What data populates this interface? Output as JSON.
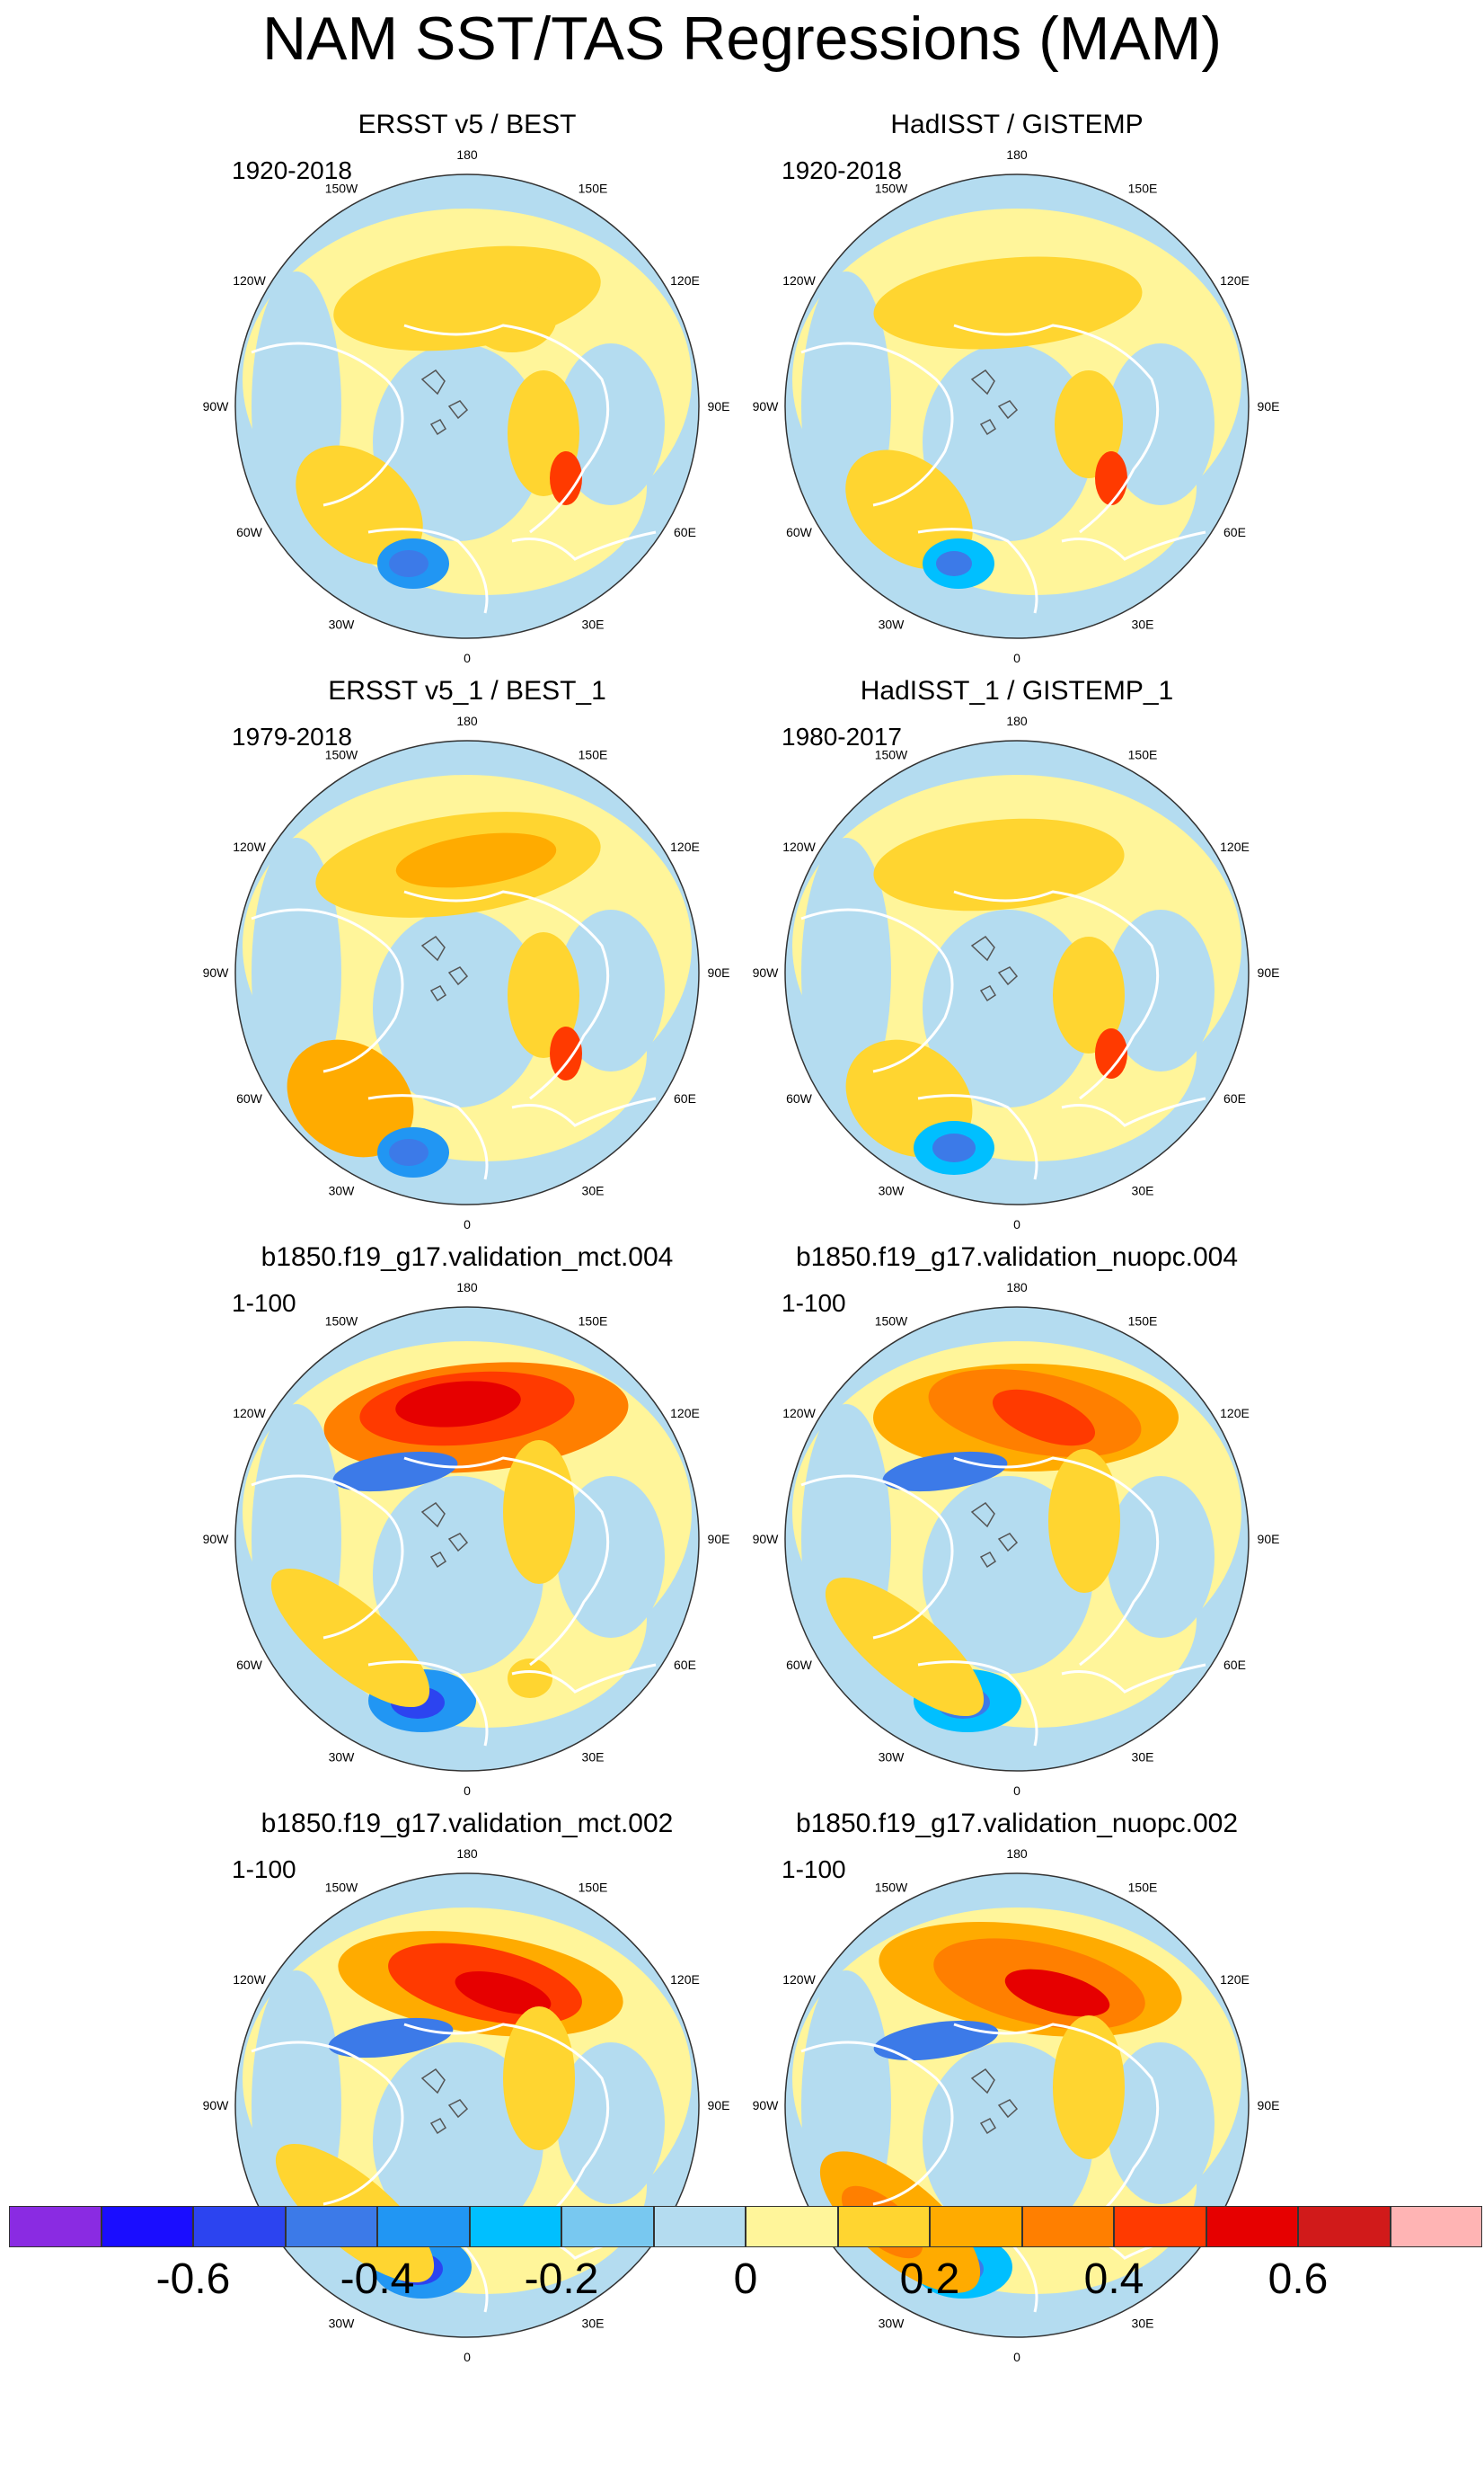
{
  "title": "NAM SST/TAS Regressions (MAM)",
  "lon_labels": [
    "180",
    "150E",
    "120E",
    "90E",
    "60E",
    "30E",
    "0",
    "30W",
    "60W",
    "90W",
    "120W",
    "150W"
  ],
  "panels": [
    {
      "title": "ERSST v5 / BEST",
      "period": "1920-2018"
    },
    {
      "title": "HadISST / GISTEMP",
      "period": "1920-2018"
    },
    {
      "title": "ERSST v5_1 / BEST_1",
      "period": "1979-2018"
    },
    {
      "title": "HadISST_1 / GISTEMP_1",
      "period": "1980-2017"
    },
    {
      "title": "b1850.f19_g17.validation_mct.004",
      "period": "1-100"
    },
    {
      "title": "b1850.f19_g17.validation_nuopc.004",
      "period": "1-100"
    },
    {
      "title": "b1850.f19_g17.validation_mct.002",
      "period": "1-100"
    },
    {
      "title": "b1850.f19_g17.validation_nuopc.002",
      "period": "1-100"
    }
  ],
  "colorbar": {
    "colors": [
      "#8a2be2",
      "#1a0dff",
      "#2c44f0",
      "#3c7ae8",
      "#2196f3",
      "#00bfff",
      "#78c8f0",
      "#b4dcf0",
      "#fff59a",
      "#ffd530",
      "#ffab00",
      "#ff7f00",
      "#ff3a00",
      "#e60000",
      "#d11a1a",
      "#ffb4b4"
    ],
    "labels": [
      "-0.6",
      "-0.4",
      "-0.2",
      "0",
      "0.2",
      "0.4",
      "0.6"
    ]
  }
}
